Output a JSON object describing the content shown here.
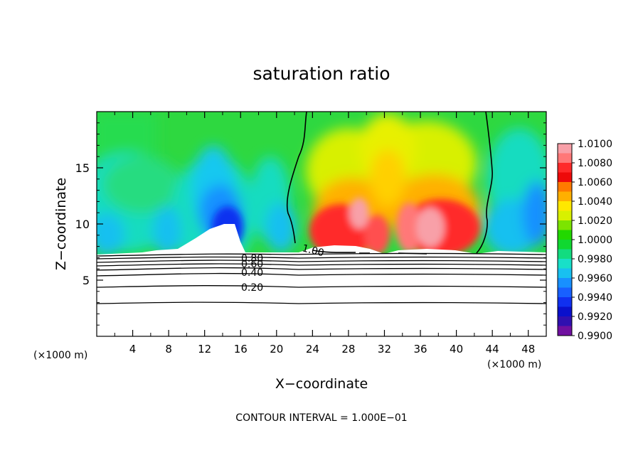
{
  "chart_data": {
    "type": "heatmap",
    "title": "saturation ratio",
    "xlabel": "X−coordinate",
    "ylabel": "Z−coordinate",
    "x_unit_label": "(×1000 m)",
    "x_unit_label_right": "(×1000 m)",
    "xlim": [
      0,
      50
    ],
    "ylim": [
      0,
      20
    ],
    "x_ticks": [
      4,
      8,
      12,
      16,
      20,
      24,
      28,
      32,
      36,
      40,
      44,
      48
    ],
    "y_ticks": [
      5,
      10,
      15
    ],
    "footer": "CONTOUR INTERVAL = 1.000E−01",
    "colorbar": {
      "levels": [
        "1.0100",
        "1.0080",
        "1.0060",
        "1.0040",
        "1.0020",
        "1.0000",
        "0.9980",
        "0.9960",
        "0.9940",
        "0.9920",
        "0.9900"
      ],
      "colors": [
        "#f8a0a8",
        "#ff7878",
        "#ff2a2a",
        "#ee0a0a",
        "#ff7a00",
        "#ffb000",
        "#ffe800",
        "#d8f000",
        "#7ce400",
        "#22d800",
        "#10d830",
        "#12dc80",
        "#18e0c8",
        "#18c0f0",
        "#1890ff",
        "#1860ff",
        "#1030f0",
        "#0a10cc",
        "#3010b0",
        "#7010a0"
      ]
    },
    "contour_labels": [
      {
        "text": "1.00",
        "x": 24.4,
        "y": 7.9
      },
      {
        "text": "0.80",
        "x": 17.7,
        "y": 7.0
      },
      {
        "text": "0.60",
        "x": 17.7,
        "y": 6.6
      },
      {
        "text": "0.40",
        "x": 17.7,
        "y": 5.5
      },
      {
        "text": "0.20",
        "x": 17.7,
        "y": 4.5
      }
    ],
    "terrain_contours_z": [
      7.1,
      6.8,
      6.5,
      6.1,
      5.5,
      5.0,
      4.4,
      3.0
    ],
    "saturation_contour_left_x": [
      22.6,
      23.2,
      22.3,
      21.2,
      21.4,
      21.0,
      22.0,
      22.8
    ],
    "saturation_contour_right_x": [
      43.0,
      43.6,
      43.4,
      44.2,
      43.2,
      42.5,
      42.7,
      43.4
    ],
    "saturation_contour_z": [
      20,
      17,
      14,
      11,
      10,
      9,
      8,
      7.4
    ]
  }
}
